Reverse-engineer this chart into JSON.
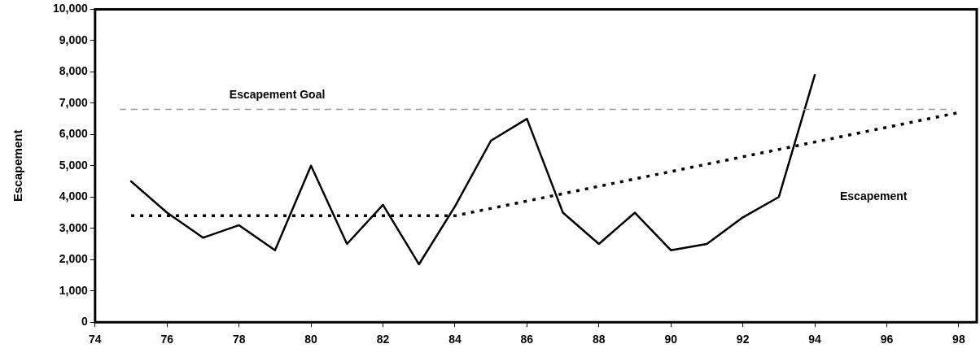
{
  "chart_data": {
    "type": "line",
    "ylabel": "Escapement",
    "xlim": [
      74,
      98.5
    ],
    "xticks": [
      74,
      76,
      78,
      80,
      82,
      84,
      86,
      88,
      90,
      92,
      94,
      96,
      98
    ],
    "ylim": [
      0,
      10000
    ],
    "yticks": [
      0,
      {
        "value": 1000,
        "label": "1,000"
      },
      {
        "value": 2000,
        "label": "2,000"
      },
      {
        "value": 3000,
        "label": "3,000"
      },
      {
        "value": 4000,
        "label": "4,000"
      },
      {
        "value": 5000,
        "label": "5,000"
      },
      {
        "value": 6000,
        "label": "6,000"
      },
      {
        "value": 7000,
        "label": "7,000"
      },
      {
        "value": 8000,
        "label": "8,000"
      },
      {
        "value": 9000,
        "label": "9,000"
      },
      {
        "value": 10000,
        "label": "10,000"
      }
    ],
    "grid": false,
    "legend": false,
    "marker": "none",
    "series": [
      {
        "color": "#000000",
        "line_style": "solid",
        "x": [
          75,
          76,
          77,
          78,
          79,
          80,
          81,
          82,
          83,
          84,
          85,
          86,
          87,
          88,
          89,
          90,
          91,
          92,
          93,
          94
        ],
        "values": [
          4500,
          3500,
          2700,
          3100,
          2300,
          5000,
          2500,
          3750,
          1850,
          3700,
          5800,
          6500,
          3500,
          2500,
          3500,
          2300,
          2500,
          3350,
          4000,
          7900
        ]
      },
      {
        "color": "#000000",
        "line_style": "dotted",
        "x": [
          75,
          84,
          98
        ],
        "values": [
          3400,
          3400,
          6700
        ]
      }
    ],
    "ref_lines": [
      {
        "axis": "y",
        "value": 6800,
        "label": "Escapement Goal",
        "color": "#999999",
        "line_style": "dashed"
      }
    ],
    "annotations": [
      "Escapement"
    ]
  }
}
